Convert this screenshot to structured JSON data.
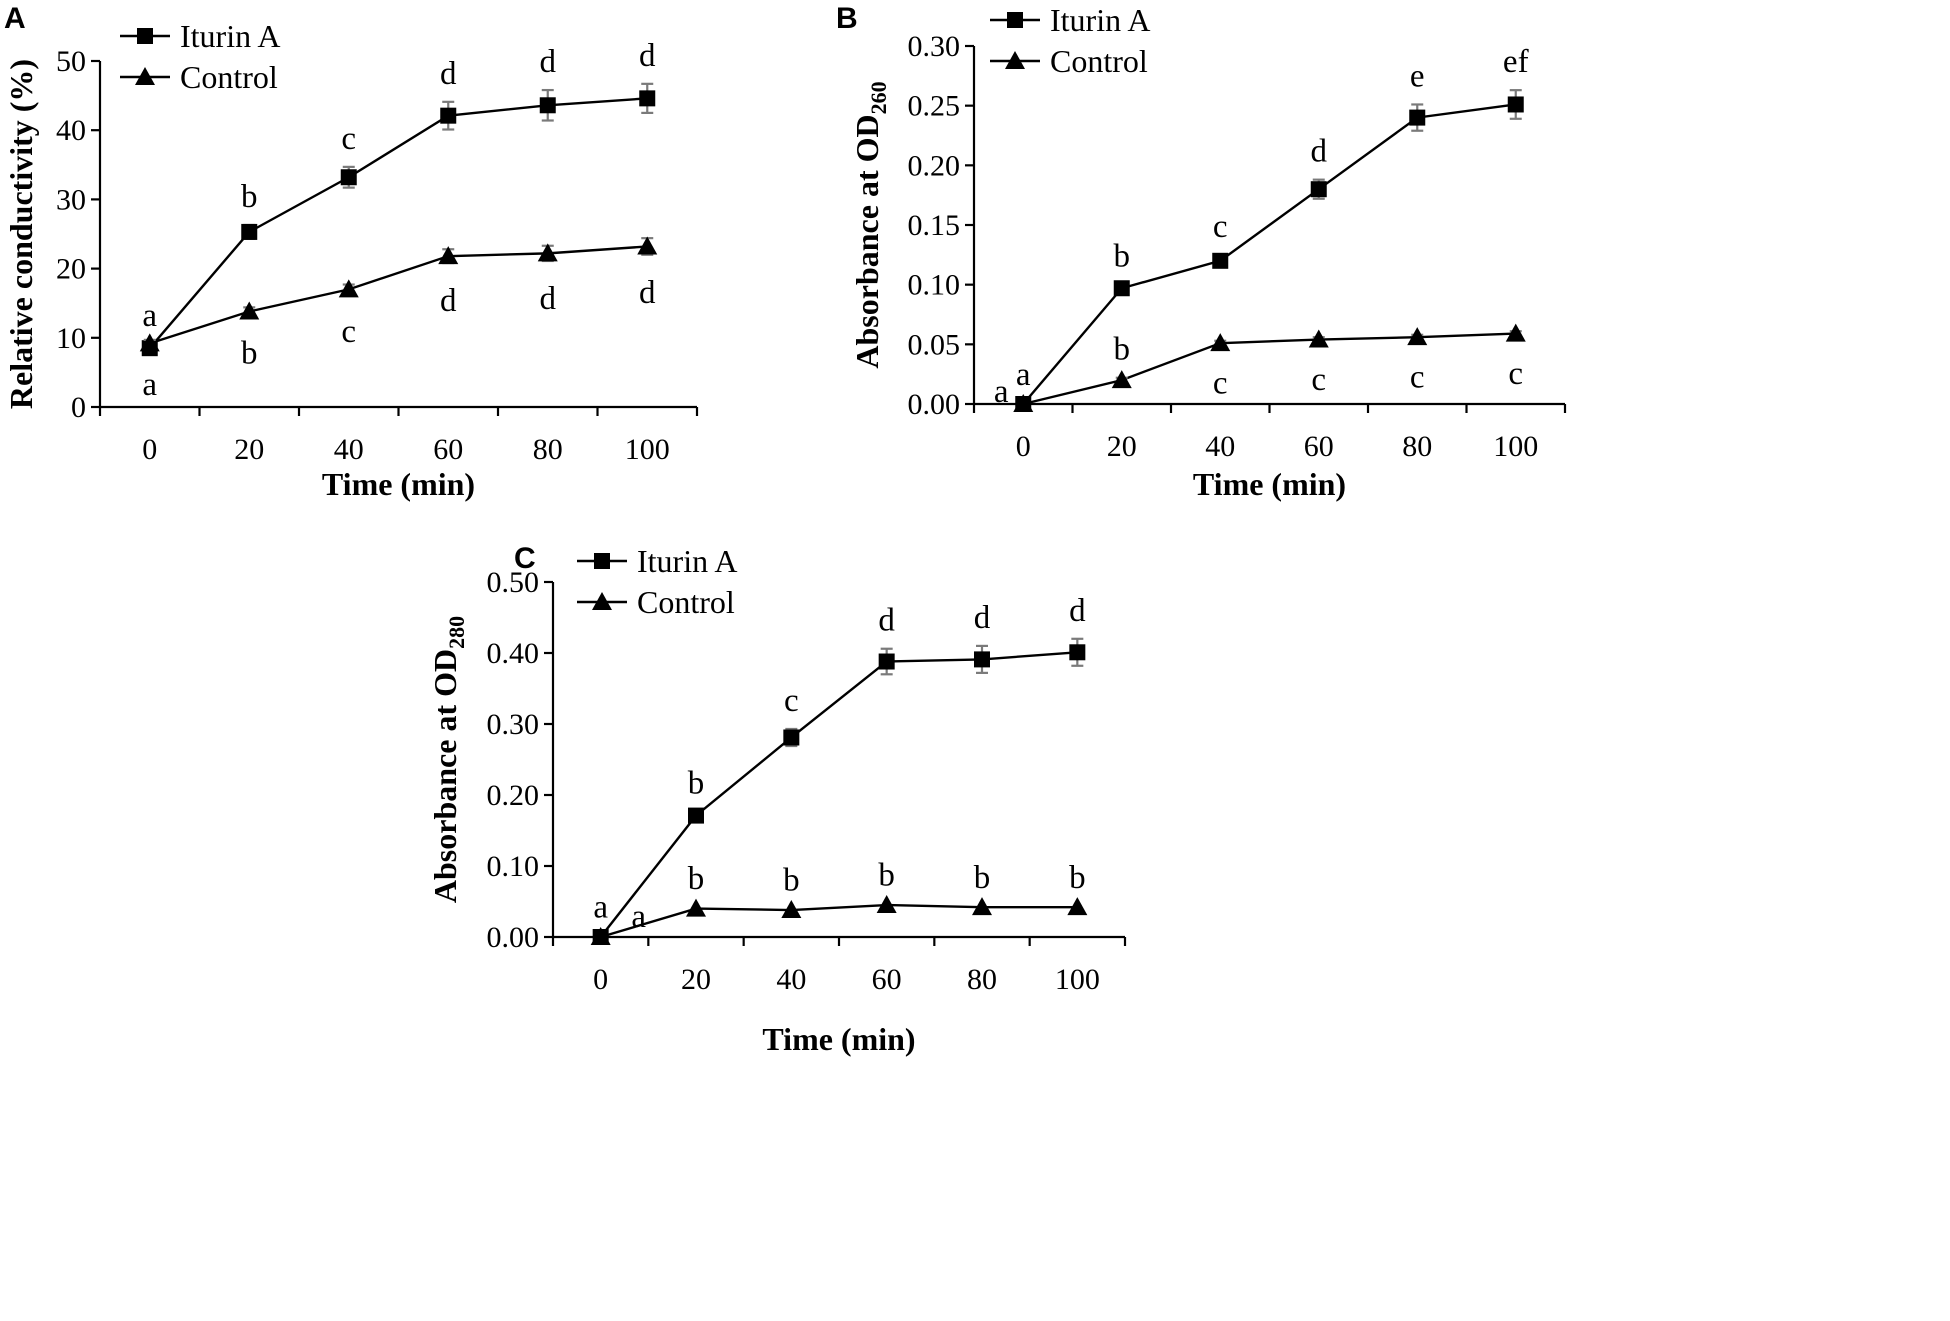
{
  "chart_data": [
    {
      "panel": "A",
      "type": "line",
      "xlabel": "Time (min)",
      "ylabel": "Relative conductivity (%)",
      "x": [
        0,
        20,
        40,
        60,
        80,
        100
      ],
      "xlim": [
        -10,
        110
      ],
      "ylim": [
        0,
        50
      ],
      "yticks": [
        0,
        10,
        20,
        30,
        40,
        50
      ],
      "ytick_decimals": 0,
      "legend_placement": "top-left",
      "series": [
        {
          "name": "Iturin A",
          "marker": "square",
          "values": [
            8.5,
            25.3,
            33.2,
            42.1,
            43.6,
            44.6
          ],
          "errors": [
            0.6,
            1.0,
            1.5,
            2.0,
            2.2,
            2.1
          ],
          "labels": [
            "a",
            "b",
            "c",
            "d",
            "d",
            "d"
          ],
          "label_positions": [
            "above",
            "above",
            "above",
            "above",
            "above",
            "above"
          ]
        },
        {
          "name": "Control",
          "marker": "triangle",
          "values": [
            9.2,
            13.8,
            17.0,
            21.8,
            22.2,
            23.2
          ],
          "errors": [
            0.5,
            0.6,
            0.7,
            1.0,
            1.1,
            1.2
          ],
          "labels": [
            "a",
            "b",
            "c",
            "d",
            "d",
            "d"
          ],
          "label_positions": [
            "below",
            "below",
            "below",
            "below",
            "below",
            "below"
          ]
        }
      ]
    },
    {
      "panel": "B",
      "type": "line",
      "xlabel": "Time (min)",
      "ylabel": "Absorbance  at OD",
      "ylabel_sub": "260",
      "x": [
        0,
        20,
        40,
        60,
        80,
        100
      ],
      "xlim": [
        -10,
        110
      ],
      "ylim": [
        0,
        0.3
      ],
      "yticks": [
        0.0,
        0.05,
        0.1,
        0.15,
        0.2,
        0.25,
        0.3
      ],
      "ytick_decimals": 2,
      "legend_placement": "top-left",
      "series": [
        {
          "name": "Iturin A",
          "marker": "square",
          "values": [
            0.0,
            0.097,
            0.12,
            0.18,
            0.24,
            0.251
          ],
          "errors": [
            0.001,
            0.003,
            0.005,
            0.008,
            0.011,
            0.012
          ],
          "labels": [
            "a",
            "b",
            "c",
            "d",
            "e",
            "ef"
          ],
          "label_positions": [
            "above",
            "above",
            "above",
            "above",
            "above",
            "above"
          ]
        },
        {
          "name": "Control",
          "marker": "triangle",
          "values": [
            0.0,
            0.02,
            0.051,
            0.054,
            0.056,
            0.059
          ],
          "errors": [
            0.001,
            0.002,
            0.002,
            0.002,
            0.002,
            0.002
          ],
          "labels": [
            "a",
            "b",
            "c",
            "c",
            "c",
            "c"
          ],
          "label_positions": [
            "left",
            "above",
            "below",
            "below",
            "below",
            "below"
          ]
        }
      ]
    },
    {
      "panel": "C",
      "type": "line",
      "xlabel": "Time (min)",
      "ylabel": "Absorbance  at OD",
      "ylabel_sub": "280",
      "x": [
        0,
        20,
        40,
        60,
        80,
        100
      ],
      "xlim": [
        -10,
        110
      ],
      "ylim": [
        0,
        0.5
      ],
      "yticks": [
        0.0,
        0.1,
        0.2,
        0.3,
        0.4,
        0.5
      ],
      "ytick_decimals": 2,
      "legend_placement": "top-left",
      "series": [
        {
          "name": "Iturin A",
          "marker": "square",
          "values": [
            0.0,
            0.171,
            0.281,
            0.388,
            0.391,
            0.401
          ],
          "errors": [
            0.002,
            0.006,
            0.012,
            0.018,
            0.019,
            0.019
          ],
          "labels": [
            "a",
            "b",
            "c",
            "d",
            "d",
            "d"
          ],
          "label_positions": [
            "above",
            "above",
            "above",
            "above",
            "above",
            "above"
          ]
        },
        {
          "name": "Control",
          "marker": "triangle",
          "values": [
            0.0,
            0.04,
            0.038,
            0.045,
            0.042,
            0.042
          ],
          "errors": [
            0.002,
            0.002,
            0.002,
            0.002,
            0.002,
            0.002
          ],
          "labels": [
            "a",
            "b",
            "b",
            "b",
            "b",
            "b"
          ],
          "label_positions": [
            "right",
            "above",
            "above",
            "above",
            "above",
            "above"
          ]
        }
      ]
    }
  ]
}
